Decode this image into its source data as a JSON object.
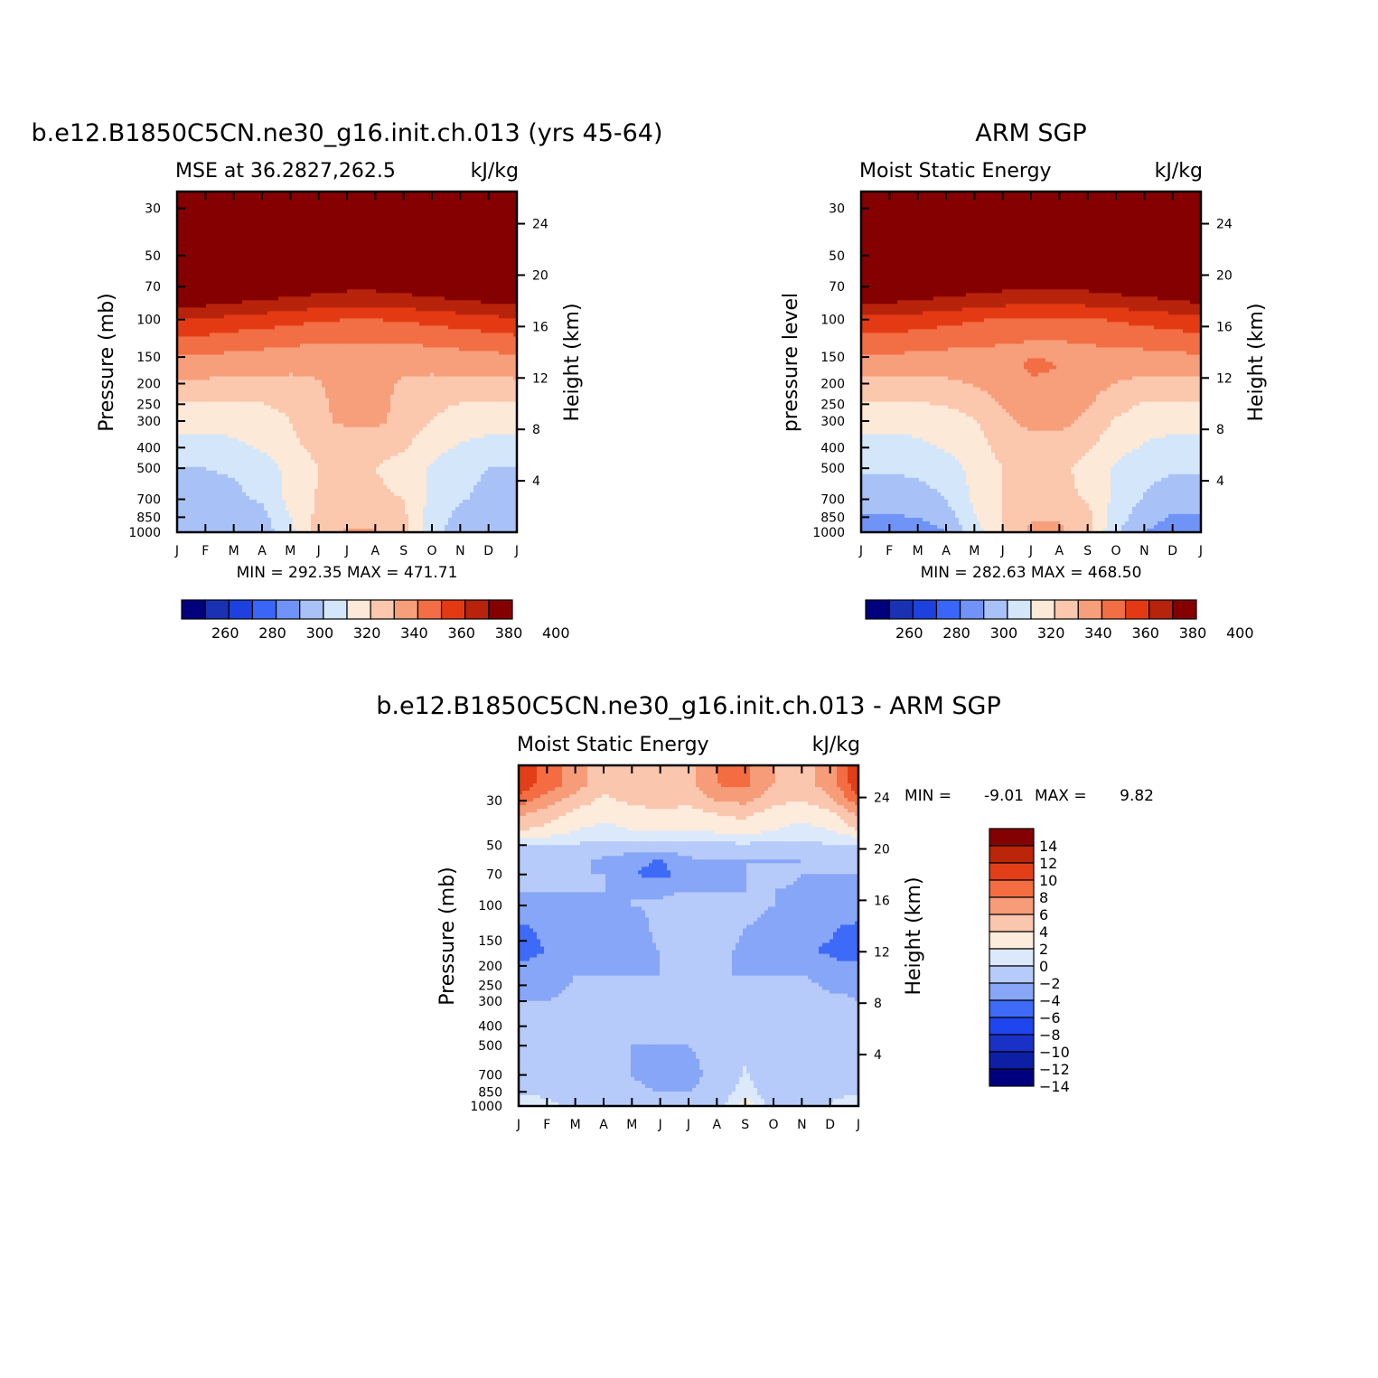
{
  "colors": {
    "levels12": [
      "#00007f",
      "#1a31b4",
      "#1d41de",
      "#3a66f7",
      "#6f93f7",
      "#a8c2f7",
      "#d4e6fa",
      "#fde9d7",
      "#fbc7ad",
      "#f79e7a",
      "#f26e45",
      "#e43a14",
      "#b7230b",
      "#850000"
    ],
    "levels14": [
      "#00007f",
      "#0c1fa5",
      "#1a31c8",
      "#1e45ee",
      "#3d6af7",
      "#87a6f7",
      "#b6cbfa",
      "#dce9fa",
      "#fdebdc",
      "#fbc6ae",
      "#f79c79",
      "#f46d42",
      "#e23e17",
      "#bb2509",
      "#850000"
    ]
  },
  "panels": [
    {
      "title": "b.e12.B1850C5CN.ne30_g16.init.ch.013 (yrs 45-64)",
      "left_string": "MSE at 36.2827,262.5",
      "units": "kJ/kg",
      "ylabel": "Pressure (mb)",
      "right_label": "Height (km)",
      "stats": "MIN = 292.35 MAX = 471.71"
    },
    {
      "title": "ARM SGP",
      "left_string": "Moist Static Energy",
      "units": "kJ/kg",
      "ylabel": "pressure level",
      "right_label": "Height (km)",
      "stats": "MIN = 282.63 MAX = 468.50"
    },
    {
      "title": "b.e12.B1850C5CN.ne30_g16.init.ch.013 - ARM SGP",
      "left_string": "Moist Static Energy",
      "units": "kJ/kg",
      "ylabel": "Pressure (mb)",
      "right_label": "Height (km)",
      "stats_min_label": "MIN =",
      "stats_min": "-9.01",
      "stats_max_label": "MAX =",
      "stats_max": "9.82"
    }
  ],
  "chart_data": [
    {
      "type": "heatmap",
      "title": "b.e12.B1850C5CN.ne30_g16.init.ch.013 (yrs 45-64)",
      "x_categories": [
        "J",
        "F",
        "M",
        "A",
        "M",
        "J",
        "J",
        "A",
        "S",
        "O",
        "N",
        "D",
        "J"
      ],
      "y_pressure_ticks": [
        30,
        50,
        70,
        100,
        150,
        200,
        250,
        300,
        400,
        500,
        700,
        850,
        1000
      ],
      "y_height_ticks_km": [
        24,
        20,
        16,
        12,
        8,
        4
      ],
      "xlabel": "",
      "ylabel": "Pressure (mb)",
      "units": "kJ/kg",
      "colorbar_labels": [
        260,
        280,
        300,
        320,
        340,
        360,
        380,
        400
      ],
      "levels": [
        255,
        265,
        275,
        285,
        295,
        305,
        315,
        325,
        335,
        345,
        355,
        365,
        375,
        385,
        395
      ],
      "min": 292.35,
      "max": 471.71,
      "grid_pressures": [
        30,
        50,
        60,
        70,
        85,
        100,
        130,
        170,
        220,
        300,
        400,
        500,
        700,
        850,
        1000
      ],
      "values": [
        [
          470,
          470,
          470,
          470,
          470,
          470,
          470,
          470,
          470,
          470,
          470,
          470,
          470
        ],
        [
          430,
          430,
          430,
          430,
          430,
          430,
          430,
          430,
          430,
          430,
          430,
          430,
          430
        ],
        [
          400,
          400,
          400,
          398,
          396,
          394,
          392,
          392,
          394,
          396,
          398,
          400,
          400
        ],
        [
          388,
          388,
          386,
          384,
          382,
          380,
          378,
          378,
          380,
          382,
          384,
          386,
          388
        ],
        [
          376,
          376,
          374,
          372,
          370,
          368,
          366,
          366,
          368,
          370,
          372,
          374,
          376
        ],
        [
          364,
          364,
          362,
          360,
          358,
          356,
          355,
          355,
          356,
          358,
          360,
          362,
          364
        ],
        [
          350,
          350,
          348,
          347,
          346,
          345,
          345,
          345,
          345,
          346,
          347,
          348,
          350
        ],
        [
          340,
          340,
          338,
          338,
          337,
          336,
          336,
          336,
          336,
          337,
          338,
          338,
          340
        ],
        [
          328,
          328,
          328,
          328,
          329,
          334,
          338,
          338,
          333,
          329,
          328,
          328,
          328
        ],
        [
          318,
          318,
          318,
          320,
          325,
          333,
          337,
          337,
          332,
          325,
          320,
          318,
          318
        ],
        [
          312,
          312,
          313,
          316,
          322,
          328,
          328,
          328,
          326,
          318,
          314,
          312,
          312
        ],
        [
          305,
          305,
          306,
          310,
          318,
          325,
          325,
          325,
          321,
          314,
          308,
          305,
          305
        ],
        [
          302,
          302,
          303,
          306,
          318,
          326,
          327,
          327,
          325,
          312,
          306,
          302,
          302
        ],
        [
          298,
          298,
          298,
          302,
          315,
          328,
          333,
          333,
          327,
          310,
          302,
          298,
          298
        ],
        [
          295,
          295,
          295,
          300,
          312,
          330,
          336,
          336,
          328,
          308,
          300,
          295,
          295
        ]
      ]
    },
    {
      "type": "heatmap",
      "title": "ARM SGP",
      "x_categories": [
        "J",
        "F",
        "M",
        "A",
        "M",
        "J",
        "J",
        "A",
        "S",
        "O",
        "N",
        "D",
        "J"
      ],
      "y_pressure_ticks": [
        30,
        50,
        70,
        100,
        150,
        200,
        250,
        300,
        400,
        500,
        700,
        850,
        1000
      ],
      "y_height_ticks_km": [
        24,
        20,
        16,
        12,
        8,
        4
      ],
      "xlabel": "",
      "ylabel": "pressure level",
      "units": "kJ/kg",
      "colorbar_labels": [
        260,
        280,
        300,
        320,
        340,
        360,
        380,
        400
      ],
      "levels": [
        255,
        265,
        275,
        285,
        295,
        305,
        315,
        325,
        335,
        345,
        355,
        365,
        375,
        385,
        395
      ],
      "min": 282.63,
      "max": 468.5,
      "grid_pressures": [
        30,
        50,
        60,
        70,
        85,
        100,
        130,
        170,
        220,
        300,
        400,
        500,
        700,
        850,
        1000
      ],
      "values": [
        [
          468,
          468,
          468,
          468,
          468,
          468,
          468,
          468,
          468,
          468,
          468,
          468,
          468
        ],
        [
          430,
          430,
          430,
          430,
          430,
          430,
          430,
          430,
          430,
          430,
          430,
          430,
          430
        ],
        [
          398,
          398,
          396,
          394,
          392,
          390,
          388,
          388,
          390,
          392,
          394,
          396,
          398
        ],
        [
          386,
          386,
          384,
          382,
          380,
          378,
          377,
          377,
          378,
          380,
          382,
          384,
          386
        ],
        [
          374,
          374,
          372,
          370,
          368,
          366,
          365,
          365,
          366,
          368,
          370,
          372,
          374
        ],
        [
          362,
          362,
          360,
          358,
          356,
          354,
          353,
          353,
          354,
          356,
          358,
          360,
          362
        ],
        [
          350,
          350,
          348,
          347,
          346,
          345,
          344,
          344,
          345,
          346,
          347,
          348,
          350
        ],
        [
          338,
          338,
          338,
          338,
          340,
          342,
          346,
          345,
          342,
          339,
          338,
          338,
          338
        ],
        [
          328,
          328,
          328,
          330,
          333,
          338,
          343,
          342,
          338,
          332,
          328,
          328,
          328
        ],
        [
          318,
          318,
          318,
          320,
          324,
          332,
          338,
          338,
          333,
          324,
          319,
          318,
          318
        ],
        [
          312,
          312,
          313,
          316,
          321,
          328,
          331,
          330,
          326,
          318,
          314,
          312,
          312
        ],
        [
          306,
          306,
          307,
          310,
          318,
          325,
          328,
          327,
          322,
          314,
          308,
          306,
          306
        ],
        [
          300,
          300,
          301,
          305,
          317,
          325,
          328,
          328,
          324,
          312,
          304,
          300,
          300
        ],
        [
          294,
          294,
          295,
          300,
          314,
          326,
          334,
          334,
          328,
          310,
          299,
          294,
          294
        ],
        [
          290,
          290,
          290,
          295,
          310,
          326,
          337,
          337,
          328,
          306,
          295,
          290,
          290
        ]
      ]
    },
    {
      "type": "heatmap",
      "title": "b.e12.B1850C5CN.ne30_g16.init.ch.013 - ARM SGP",
      "x_categories": [
        "J",
        "F",
        "M",
        "A",
        "M",
        "J",
        "J",
        "A",
        "S",
        "O",
        "N",
        "D",
        "J"
      ],
      "y_pressure_ticks": [
        30,
        50,
        70,
        100,
        150,
        200,
        250,
        300,
        400,
        500,
        700,
        850,
        1000
      ],
      "y_height_ticks_km": [
        24,
        20,
        16,
        12,
        8,
        4
      ],
      "xlabel": "",
      "ylabel": "Pressure (mb)",
      "units": "kJ/kg",
      "colorbar_labels": [
        14,
        12,
        10,
        8,
        6,
        4,
        2,
        0,
        -2,
        -4,
        -6,
        -8,
        -10,
        -12,
        -14
      ],
      "levels": [
        -15,
        -13,
        -11,
        -9,
        -7,
        -5,
        -3,
        -1,
        1,
        3,
        5,
        7,
        9,
        11,
        13
      ],
      "min": -9.01,
      "max": 9.82,
      "grid_pressures": [
        25,
        30,
        35,
        42,
        50,
        60,
        70,
        85,
        100,
        130,
        170,
        220,
        300,
        400,
        500,
        700,
        850,
        1000
      ],
      "values": [
        [
          8.5,
          6,
          4,
          1.5,
          2.5,
          3,
          2.5,
          5,
          5.5,
          3,
          2,
          4,
          8.5
        ],
        [
          6,
          4,
          2,
          0.5,
          1.5,
          2,
          1.5,
          3,
          3.5,
          1.5,
          1,
          2.5,
          6
        ],
        [
          3.5,
          2,
          0.5,
          -0.5,
          0,
          0.5,
          0,
          1,
          1.5,
          0,
          -0.5,
          0.5,
          3.5
        ],
        [
          1,
          0.5,
          -1,
          -1.5,
          -1,
          -0.8,
          -1,
          -0.5,
          0,
          -1,
          -1.5,
          -1,
          1
        ],
        [
          -3,
          -3,
          -3.2,
          -3.5,
          -3.5,
          -3.4,
          -3.4,
          -3.4,
          -3.4,
          -3.4,
          -3.4,
          -3.2,
          -3
        ],
        [
          -5,
          -5,
          -4.5,
          -5.5,
          -6.5,
          -7.2,
          -5.5,
          -5,
          -5,
          -5.2,
          -5,
          -5,
          -5
        ],
        [
          -5,
          -5,
          -5,
          -5,
          -7,
          -7.5,
          -6.5,
          -5.5,
          -5,
          -4,
          -5,
          -5,
          -5
        ],
        [
          -5,
          -5,
          -5,
          -5,
          -5,
          -5.5,
          -5,
          -5,
          -5,
          -5,
          -5.5,
          -5.5,
          -5
        ],
        [
          -5.5,
          -5.5,
          -5.5,
          -5.5,
          -5,
          -4.5,
          -3.5,
          -4,
          -4.5,
          -5,
          -6.2,
          -6.5,
          -5.5
        ],
        [
          -7.5,
          -6.5,
          -5.8,
          -6.8,
          -6.8,
          -4,
          -3.2,
          -3.5,
          -5,
          -5.5,
          -6.5,
          -6.8,
          -7.5
        ],
        [
          -8.5,
          -6.8,
          -6.5,
          -6.5,
          -6,
          -5,
          -4,
          -4.5,
          -5.5,
          -5.2,
          -6.8,
          -7.2,
          -8.5
        ],
        [
          -5.5,
          -5.5,
          -5,
          -5,
          -5,
          -5,
          -5,
          -5,
          -5,
          -5,
          -5,
          -6,
          -5.5
        ],
        [
          -5,
          -5,
          -4.8,
          -5,
          -5,
          -5,
          -5,
          -5,
          -5,
          -4,
          -3.5,
          -4.5,
          -5
        ],
        [
          -3.5,
          -4,
          -5,
          -5,
          -5,
          -5,
          -5,
          -4.5,
          -3.5,
          -4,
          -3.5,
          -3.5,
          -3.5
        ],
        [
          -3.5,
          -3.5,
          -4.5,
          -5,
          -5,
          -5,
          -5,
          -4.5,
          -3.5,
          -4.5,
          -3.5,
          -3.5,
          -3.5
        ],
        [
          -3.5,
          -3.5,
          -4.8,
          -4.5,
          -5,
          -6,
          -5.5,
          -4.5,
          -2.8,
          -4.5,
          -3.5,
          -3.5,
          -3.5
        ],
        [
          -3.5,
          -3.5,
          -4.5,
          -4.5,
          -4.5,
          -5,
          -5,
          -4.5,
          -2,
          -4.5,
          -4,
          -3.5,
          -3.5
        ],
        [
          -1,
          -2.5,
          -3.5,
          -4,
          -4,
          -4.5,
          -4.5,
          -4.5,
          0.5,
          -4.5,
          -3.5,
          -3,
          -1
        ]
      ]
    }
  ]
}
